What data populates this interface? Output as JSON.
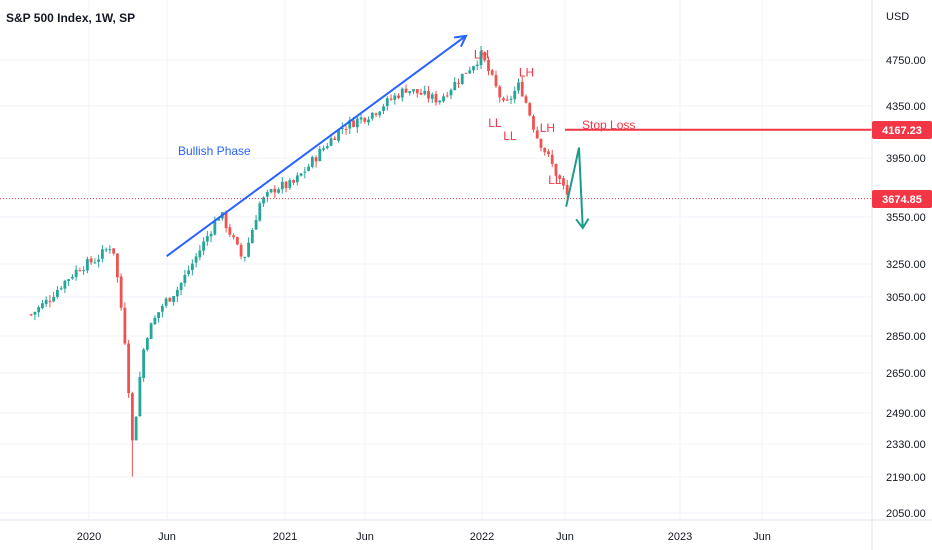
{
  "chart_data": {
    "type": "candlestick",
    "title": "S&P 500 Index, 1W, SP",
    "currency": "USD",
    "y_ticks": [
      4750,
      4350,
      3950,
      3550,
      3250,
      3050,
      2850,
      2650,
      2490,
      2330,
      2190,
      2050
    ],
    "x_ticks": [
      "2020",
      "Jun",
      "2021",
      "Jun",
      "2022",
      "Jun",
      "2023",
      "Jun"
    ],
    "ylim": [
      2000,
      5050
    ],
    "grid": true,
    "colors": {
      "up": "#26a69a",
      "down": "#ef5350",
      "price_line": "#f23645",
      "trend": "#2962ff",
      "projection": "#1e9c8a"
    },
    "series": [
      {
        "points": [
          {
            "date": "2019-09",
            "close": 2960
          },
          {
            "date": "2019-10",
            "close": 3030
          },
          {
            "date": "2019-11",
            "close": 3140
          },
          {
            "date": "2019-12",
            "close": 3230
          },
          {
            "date": "2020-01",
            "close": 3280
          },
          {
            "date": "2020-02-14",
            "close": 3380
          },
          {
            "date": "2020-03-13",
            "close": 2710
          },
          {
            "date": "2020-03-20",
            "close": 2300
          },
          {
            "date": "2020-04",
            "close": 2840
          },
          {
            "date": "2020-05",
            "close": 3000
          },
          {
            "date": "2020-06",
            "close": 3100
          },
          {
            "date": "2020-07",
            "close": 3270
          },
          {
            "date": "2020-09-02",
            "close": 3580
          },
          {
            "date": "2020-10",
            "close": 3270
          },
          {
            "date": "2020-11",
            "close": 3640
          },
          {
            "date": "2020-12",
            "close": 3750
          },
          {
            "date": "2021-01",
            "close": 3770
          },
          {
            "date": "2021-02",
            "close": 3900
          },
          {
            "date": "2021-04",
            "close": 4180
          },
          {
            "date": "2021-06",
            "close": 4300
          },
          {
            "date": "2021-08",
            "close": 4500
          },
          {
            "date": "2021-10",
            "close": 4400
          },
          {
            "date": "2021-12",
            "close": 4700
          },
          {
            "date": "2022-01-03",
            "close": 4790
          },
          {
            "date": "2022-02",
            "close": 4340
          },
          {
            "date": "2022-03",
            "close": 4540
          },
          {
            "date": "2022-04",
            "close": 4130
          },
          {
            "date": "2022-05",
            "close": 3900
          },
          {
            "date": "2022-06",
            "close": 3674.85
          }
        ]
      }
    ],
    "annotations": {
      "bullish_label": "Bullish Phase",
      "stop_loss_label": "Stop Loss",
      "stop_loss_price": 4167.23,
      "stop_loss_tag": "4167.23",
      "last_price": 3674.85,
      "last_price_tag": "3674.85",
      "pivots": [
        {
          "text": "LH",
          "date": "2022-01-03",
          "price": 4800
        },
        {
          "text": "LL",
          "date": "2022-01-28",
          "price": 4220
        },
        {
          "text": "LL",
          "date": "2022-02-25",
          "price": 4120
        },
        {
          "text": "LH",
          "date": "2022-03-28",
          "price": 4640
        },
        {
          "text": "LH",
          "date": "2022-05-06",
          "price": 4180
        },
        {
          "text": "LL",
          "date": "2022-05-20",
          "price": 3800
        }
      ]
    }
  }
}
